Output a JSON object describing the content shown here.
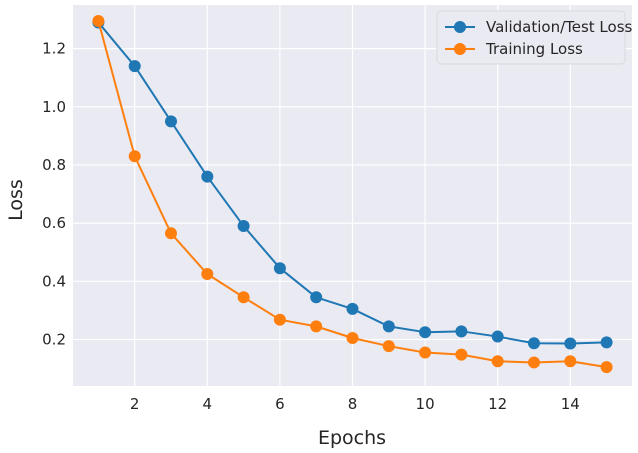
{
  "chart_data": {
    "type": "line",
    "title": "",
    "xlabel": "Epochs",
    "ylabel": "Loss",
    "x": [
      1,
      2,
      3,
      4,
      5,
      6,
      7,
      8,
      9,
      10,
      11,
      12,
      13,
      14,
      15
    ],
    "xlim": [
      0.3,
      15.7
    ],
    "ylim": [
      0.04,
      1.35
    ],
    "xticks": [
      2,
      4,
      6,
      8,
      10,
      12,
      14
    ],
    "yticks": [
      0.2,
      0.4,
      0.6,
      0.8,
      1.0,
      1.2
    ],
    "ytick_labels": [
      "0.2",
      "0.4",
      "0.6",
      "0.8",
      "1.0",
      "1.2"
    ],
    "grid": true,
    "legend_position": "top-right",
    "series": [
      {
        "name": "Validation/Test Loss",
        "color": "#1f77b4",
        "values": [
          1.29,
          1.14,
          0.95,
          0.76,
          0.59,
          0.445,
          0.345,
          0.305,
          0.245,
          0.225,
          0.228,
          0.21,
          0.187,
          0.186,
          0.19
        ]
      },
      {
        "name": "Training Loss",
        "color": "#ff7f0e",
        "values": [
          1.295,
          0.83,
          0.565,
          0.425,
          0.345,
          0.268,
          0.245,
          0.205,
          0.177,
          0.155,
          0.148,
          0.125,
          0.121,
          0.125,
          0.105
        ]
      }
    ]
  }
}
